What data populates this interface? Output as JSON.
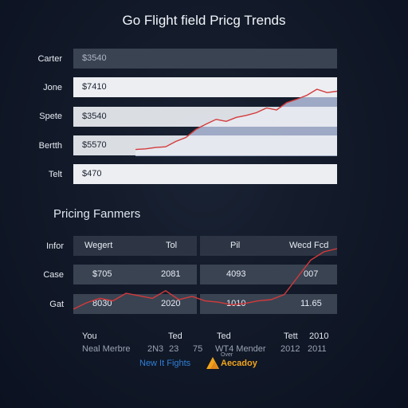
{
  "title": "Go Flight field Pricg Trends",
  "rows": [
    {
      "label": "Carter",
      "value": "$3540",
      "style": "dark"
    },
    {
      "label": "Jone",
      "value": "$7410",
      "style": "light"
    },
    {
      "label": "Spete",
      "value": "$3540",
      "style": "light"
    },
    {
      "label": "Bertth",
      "value": "$5570",
      "style": "light"
    },
    {
      "label": "Telt",
      "value": "$470",
      "style": "light"
    }
  ],
  "section_title": "Pricing Fanmers",
  "grid": {
    "headers": [
      "Wegert",
      "Tol",
      "Pil",
      "Wecd Fcd"
    ],
    "header_row_label": "Infor",
    "rows": [
      {
        "label": "Case",
        "cells": [
          "$705",
          "2081",
          "4093",
          "007"
        ]
      },
      {
        "label": "Gat",
        "cells": [
          "8030",
          "2020",
          "1010",
          "11.65"
        ]
      }
    ]
  },
  "footer": {
    "row1": [
      "You",
      "Ted",
      "Ted",
      "Tett",
      "2010"
    ],
    "row2": [
      "Neal Merbre",
      "2N3",
      "23",
      "75",
      "WT4 Mender",
      "2012",
      "2011"
    ]
  },
  "brands": {
    "left": "New It Fights",
    "right_small": "Over",
    "right": "Aecadoy"
  },
  "colors": {
    "accent_line": "#d43a3a",
    "area_fill": "#aeb9d6",
    "brand_blue": "#2f7fd8",
    "brand_orange": "#f2a41c"
  },
  "chart_data": {
    "type": "area",
    "title": "Go Flight field Pricg Trends",
    "series": [
      {
        "type": "area",
        "x": [
          0,
          1,
          2,
          3,
          4,
          5,
          6,
          7,
          8,
          9,
          10,
          11,
          12,
          13,
          14,
          15,
          16,
          17,
          18,
          19,
          20
        ],
        "values": [
          10,
          11,
          13,
          14,
          22,
          28,
          40,
          48,
          55,
          52,
          58,
          61,
          65,
          72,
          69,
          80,
          85,
          91,
          100,
          95,
          97
        ]
      },
      {
        "type": "line",
        "x": [
          0,
          1,
          2,
          3,
          4,
          5,
          6,
          7,
          8,
          9,
          10,
          11,
          12,
          13,
          14,
          15,
          16,
          17,
          18,
          19,
          20
        ],
        "values": [
          5,
          15,
          22,
          18,
          30,
          26,
          22,
          34,
          20,
          25,
          18,
          16,
          12,
          14,
          18,
          20,
          28,
          55,
          82,
          95,
          100
        ]
      }
    ],
    "ylim": [
      0,
      100
    ]
  }
}
